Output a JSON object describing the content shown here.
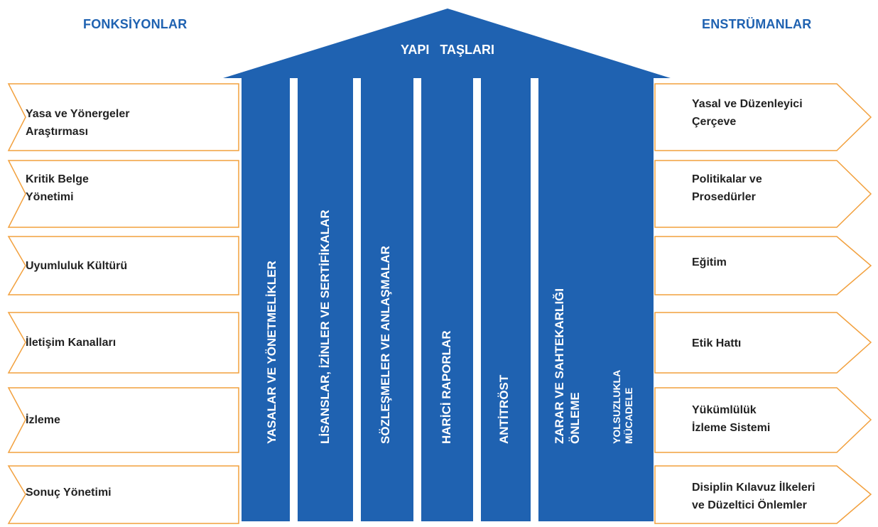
{
  "headings": {
    "functions": "FONKSİYONLAR",
    "instruments": "ENSTRÜMANLAR"
  },
  "roof_title": "YAPI TAŞLARI",
  "functions": [
    "Yasa ve Yönergeler\nAraştırması",
    "Kritik Belge\nYönetimi",
    "Uyumluluk Kültürü",
    "İletişim Kanalları",
    "İzleme",
    "Sonuç Yönetimi"
  ],
  "pillars": [
    "YASALAR VE YÖNETMELİKLER",
    "LİSANSLAR, İZİNLER VE SERTİFİKALAR",
    "SÖZLEŞMELER VE ANLAŞMALAR",
    "HARİCİ RAPORLAR",
    "ANTİTRÖST",
    "ZARAR VE SAHTEKARLIĞI\nÖNLEME",
    "YOLSUZLUKLA\nMÜCADELE"
  ],
  "instruments": [
    "Yasal ve Düzenleyici\nÇerçeve",
    "Politikalar ve\nProsedürler",
    "Eğitim",
    "Etik Hattı",
    "Yükümlülük\nİzleme Sistemi",
    "Disiplin Kılavuz İlkeleri\nve Düzeltici Önlemler"
  ],
  "colors": {
    "blue": "#1f62b1",
    "orange": "#f2a03d",
    "text": "#222222",
    "white": "#ffffff"
  }
}
